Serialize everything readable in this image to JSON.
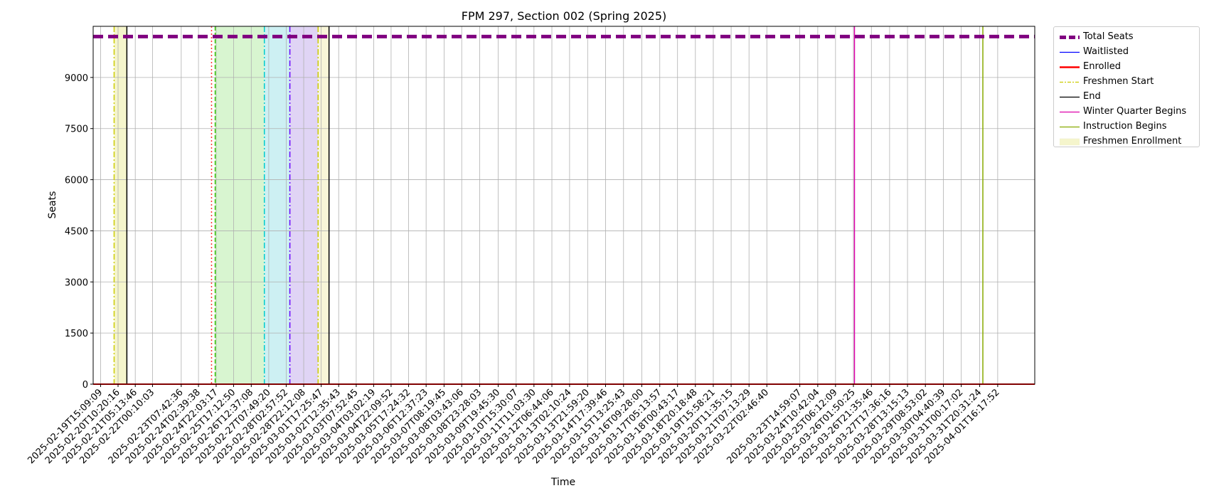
{
  "chart_data": {
    "type": "line",
    "title": "FPM 297, Section 002 (Spring 2025)",
    "xlabel": "Time",
    "ylabel": "Seats",
    "ylim": [
      0,
      10500
    ],
    "yticks": [
      0,
      1500,
      3000,
      4500,
      6000,
      7500,
      9000
    ],
    "grid": true,
    "legend_position": "outside-top-right",
    "x_start": "2025-02-19T07:00:00",
    "x_end": "2025-04-03T09:00:00",
    "xtick_labels": [
      "2025-02-19T15:09:09",
      "2025-02-20T10:20:16",
      "2025-02-21T05:13:46",
      "2025-02-22T00:10:03",
      "2025-02-23T07:42:36",
      "2025-02-24T02:39:38",
      "2025-02-24T22:03:17",
      "2025-02-25T17:12:50",
      "2025-02-26T12:37:08",
      "2025-02-27T07:49:20",
      "2025-02-28T02:57:52",
      "2025-02-28T22:12:08",
      "2025-03-01T17:25:47",
      "2025-03-02T12:35:43",
      "2025-03-03T07:52:45",
      "2025-03-04T03:02:19",
      "2025-03-04T22:09:52",
      "2025-03-05T17:24:32",
      "2025-03-06T12:37:23",
      "2025-03-07T08:19:45",
      "2025-03-08T03:43:06",
      "2025-03-08T23:28:03",
      "2025-03-09T19:45:30",
      "2025-03-10T15:30:07",
      "2025-03-11T11:03:30",
      "2025-03-12T06:44:06",
      "2025-03-13T02:10:24",
      "2025-03-13T21:59:20",
      "2025-03-14T17:39:46",
      "2025-03-15T13:25:43",
      "2025-03-16T09:28:00",
      "2025-03-17T05:13:57",
      "2025-03-18T00:43:17",
      "2025-03-18T20:18:48",
      "2025-03-19T15:58:21",
      "2025-03-20T11:35:15",
      "2025-03-21T07:13:29",
      "2025-03-22T02:46:40",
      "2025-03-23T14:59:07",
      "2025-03-24T10:42:04",
      "2025-03-25T06:12:09",
      "2025-03-26T01:50:25",
      "2025-03-26T21:35:46",
      "2025-03-27T17:36:16",
      "2025-03-28T13:15:13",
      "2025-03-29T08:53:02",
      "2025-03-30T04:40:39",
      "2025-03-31T00:17:02",
      "2025-03-31T20:31:24",
      "2025-04-01T16:17:52"
    ],
    "series": [
      {
        "name": "Total Seats",
        "color": "#800080",
        "style": "dashed",
        "value": 10200
      },
      {
        "name": "Waitlisted",
        "color": "#0000ff",
        "style": "solid",
        "value": 0
      },
      {
        "name": "Enrolled",
        "color": "#ff0000",
        "style": "solid",
        "value": 0
      }
    ],
    "vlines": [
      {
        "date": "2025-02-20T06:00:00",
        "color": "#cccc00",
        "style": "dashdot",
        "legend": "Freshmen Start"
      },
      {
        "date": "2025-02-20T20:00:00",
        "color": "#000000",
        "style": "solid",
        "legend": "End"
      },
      {
        "date": "2025-02-24T17:00:00",
        "color": "#ff3333",
        "style": "dotted",
        "legend": ""
      },
      {
        "date": "2025-02-24T21:00:00",
        "color": "#33cc00",
        "style": "dashed",
        "legend": ""
      },
      {
        "date": "2025-02-27T03:00:00",
        "color": "#00cccc",
        "style": "dashdot",
        "legend": ""
      },
      {
        "date": "2025-02-28T07:00:00",
        "color": "#6600ff",
        "style": "dashdot",
        "legend": ""
      },
      {
        "date": "2025-03-01T14:00:00",
        "color": "#cccc00",
        "style": "dashdot",
        "legend": ""
      },
      {
        "date": "2025-03-02T02:00:00",
        "color": "#000000",
        "style": "solid",
        "legend": ""
      },
      {
        "date": "2025-03-26T03:00:00",
        "color": "#dd00aa",
        "style": "solid",
        "legend": "Winter Quarter Begins"
      },
      {
        "date": "2025-04-01T00:00:00",
        "color": "#88aa00",
        "style": "solid",
        "legend": "Instruction Begins"
      }
    ],
    "spans": [
      {
        "start": "2025-02-20T06:00:00",
        "end": "2025-02-20T20:00:00",
        "color": "#f5f5cc",
        "legend": "Freshmen Enrollment"
      },
      {
        "start": "2025-02-24T21:00:00",
        "end": "2025-02-27T03:00:00",
        "color": "#d8f5d0",
        "legend": ""
      },
      {
        "start": "2025-02-27T03:00:00",
        "end": "2025-02-28T07:00:00",
        "color": "#cdf0f3",
        "legend": ""
      },
      {
        "start": "2025-02-28T07:00:00",
        "end": "2025-03-01T14:00:00",
        "color": "#e0d4f5",
        "legend": ""
      },
      {
        "start": "2025-03-01T14:00:00",
        "end": "2025-03-02T02:00:00",
        "color": "#f8f6d8",
        "legend": ""
      }
    ],
    "legend": [
      {
        "label": "Total Seats",
        "color": "#800080",
        "kind": "thick-dashed"
      },
      {
        "label": "Waitlisted",
        "color": "#0000ff",
        "kind": "line"
      },
      {
        "label": "Enrolled",
        "color": "#ff0000",
        "kind": "thick-line"
      },
      {
        "label": "Freshmen Start",
        "color": "#cccc00",
        "kind": "dashdot"
      },
      {
        "label": "End",
        "color": "#000000",
        "kind": "line"
      },
      {
        "label": "Winter Quarter Begins",
        "color": "#dd00aa",
        "kind": "line"
      },
      {
        "label": "Instruction Begins",
        "color": "#88aa00",
        "kind": "line"
      },
      {
        "label": "Freshmen Enrollment",
        "color": "#f5f5cc",
        "kind": "patch"
      }
    ]
  }
}
